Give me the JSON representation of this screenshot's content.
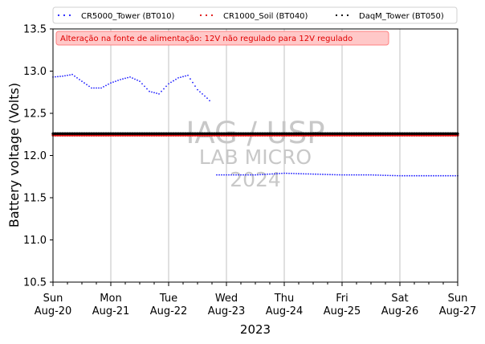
{
  "chart_data": {
    "type": "scatter",
    "xlabel": "2023",
    "ylabel": "Battery voltage (Volts)",
    "ylim": [
      10.5,
      13.5
    ],
    "xlim": [
      "2023-08-20",
      "2023-08-27"
    ],
    "y_ticks": [
      "10.5",
      "11.0",
      "11.5",
      "12.0",
      "12.5",
      "13.0",
      "13.5"
    ],
    "x_ticks": [
      {
        "day": "Sun",
        "date": "Aug-20"
      },
      {
        "day": "Mon",
        "date": "Aug-21"
      },
      {
        "day": "Tue",
        "date": "Aug-22"
      },
      {
        "day": "Wed",
        "date": "Aug-23"
      },
      {
        "day": "Thu",
        "date": "Aug-24"
      },
      {
        "day": "Fri",
        "date": "Aug-25"
      },
      {
        "day": "Sat",
        "date": "Aug-26"
      },
      {
        "day": "Sun",
        "date": "Aug-27"
      }
    ],
    "grid": "vertical gridlines at each day",
    "legend_position": "top, above plot",
    "annotation": "Alteração na fonte de alimentação: 12V não regulado para 12V regulado",
    "watermark": [
      "IAG / USP",
      "LAB MICRO",
      "2024"
    ],
    "series": [
      {
        "name": "CR5000_Tower (BT010)",
        "color": "#1f1fff",
        "x": [
          "2023-08-20 00:00",
          "2023-08-20 04:00",
          "2023-08-20 08:00",
          "2023-08-20 12:00",
          "2023-08-20 16:00",
          "2023-08-20 20:00",
          "2023-08-21 00:00",
          "2023-08-21 04:00",
          "2023-08-21 08:00",
          "2023-08-21 12:00",
          "2023-08-21 16:00",
          "2023-08-21 20:00",
          "2023-08-22 00:00",
          "2023-08-22 04:00",
          "2023-08-22 08:00",
          "2023-08-22 12:00",
          "2023-08-22 16:00",
          "2023-08-22 18:00",
          "2023-08-22 20:00",
          "2023-08-23 00:00",
          "2023-08-23 12:00",
          "2023-08-24 00:00",
          "2023-08-24 12:00",
          "2023-08-25 00:00",
          "2023-08-25 12:00",
          "2023-08-26 00:00",
          "2023-08-26 12:00",
          "2023-08-27 00:00"
        ],
        "y": [
          12.93,
          12.94,
          12.96,
          12.88,
          12.8,
          12.8,
          12.86,
          12.9,
          12.93,
          12.88,
          12.76,
          12.73,
          12.85,
          12.92,
          12.95,
          12.78,
          12.68,
          12.62,
          11.77,
          11.77,
          11.77,
          11.79,
          11.78,
          11.77,
          11.77,
          11.76,
          11.76,
          11.76
        ]
      },
      {
        "name": "CR1000_Soil (BT040)",
        "color": "#e01010",
        "x": [
          "2023-08-20 00:00",
          "2023-08-21 00:00",
          "2023-08-22 00:00",
          "2023-08-23 00:00",
          "2023-08-24 00:00",
          "2023-08-25 00:00",
          "2023-08-26 00:00",
          "2023-08-27 00:00"
        ],
        "y": [
          12.24,
          12.24,
          12.24,
          12.24,
          12.24,
          12.24,
          12.24,
          12.24
        ]
      },
      {
        "name": "DaqM_Tower (BT050)",
        "color": "#000000",
        "x": [
          "2023-08-20 00:00",
          "2023-08-21 00:00",
          "2023-08-22 00:00",
          "2023-08-23 00:00",
          "2023-08-24 00:00",
          "2023-08-25 00:00",
          "2023-08-26 00:00",
          "2023-08-27 00:00"
        ],
        "y": [
          12.26,
          12.26,
          12.26,
          12.26,
          12.26,
          12.26,
          12.26,
          12.26
        ]
      }
    ]
  }
}
